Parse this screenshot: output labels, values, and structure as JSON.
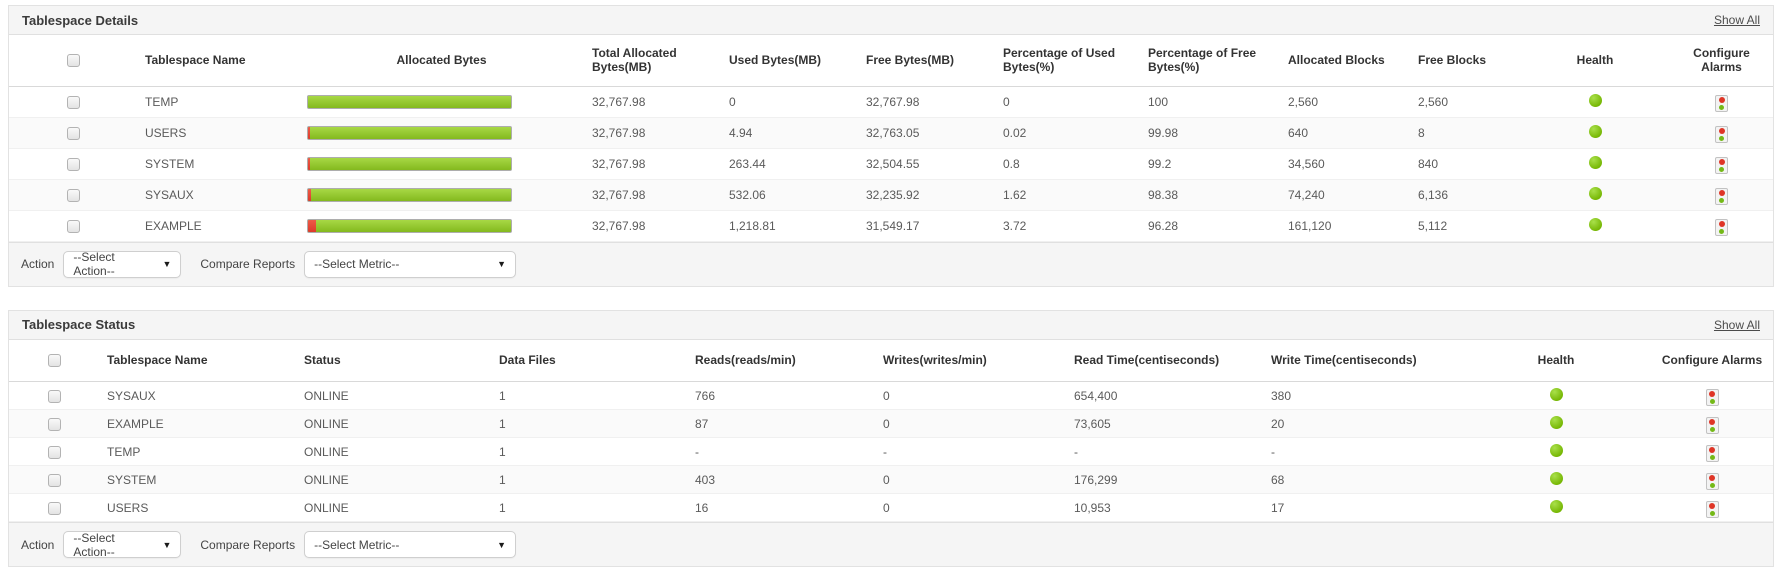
{
  "details_panel": {
    "title": "Tablespace Details",
    "show_all": "Show All",
    "columns": {
      "name": "Tablespace Name",
      "allocated_bytes": "Allocated Bytes",
      "total_allocated": "Total Allocated Bytes(MB)",
      "used": "Used Bytes(MB)",
      "free": "Free Bytes(MB)",
      "pct_used": "Percentage of Used Bytes(%)",
      "pct_free": "Percentage of Free Bytes(%)",
      "allocated_blocks": "Allocated Blocks",
      "free_blocks": "Free Blocks",
      "health": "Health",
      "configure_alarms": "Configure Alarms"
    },
    "rows": [
      {
        "name": "TEMP",
        "used_pct_num": 0,
        "total": "32,767.98",
        "used": "0",
        "free": "32,767.98",
        "pct_used": "0",
        "pct_free": "100",
        "alloc_blocks": "2,560",
        "free_blocks": "2,560",
        "health": "green"
      },
      {
        "name": "USERS",
        "used_pct_num": 0.02,
        "total": "32,767.98",
        "used": "4.94",
        "free": "32,763.05",
        "pct_used": "0.02",
        "pct_free": "99.98",
        "alloc_blocks": "640",
        "free_blocks": "8",
        "health": "green"
      },
      {
        "name": "SYSTEM",
        "used_pct_num": 0.8,
        "total": "32,767.98",
        "used": "263.44",
        "free": "32,504.55",
        "pct_used": "0.8",
        "pct_free": "99.2",
        "alloc_blocks": "34,560",
        "free_blocks": "840",
        "health": "green"
      },
      {
        "name": "SYSAUX",
        "used_pct_num": 1.62,
        "total": "32,767.98",
        "used": "532.06",
        "free": "32,235.92",
        "pct_used": "1.62",
        "pct_free": "98.38",
        "alloc_blocks": "74,240",
        "free_blocks": "6,136",
        "health": "green"
      },
      {
        "name": "EXAMPLE",
        "used_pct_num": 3.72,
        "total": "32,767.98",
        "used": "1,218.81",
        "free": "31,549.17",
        "pct_used": "3.72",
        "pct_free": "96.28",
        "alloc_blocks": "161,120",
        "free_blocks": "5,112",
        "health": "green"
      }
    ],
    "action_label": "Action",
    "action_value": "--Select Action--",
    "compare_label": "Compare Reports",
    "compare_value": "--Select Metric--"
  },
  "status_panel": {
    "title": "Tablespace Status",
    "show_all": "Show All",
    "columns": {
      "name": "Tablespace Name",
      "status": "Status",
      "data_files": "Data Files",
      "reads": "Reads(reads/min)",
      "writes": "Writes(writes/min)",
      "read_time": "Read Time(centiseconds)",
      "write_time": "Write Time(centiseconds)",
      "health": "Health",
      "configure_alarms": "Configure Alarms"
    },
    "rows": [
      {
        "name": "SYSAUX",
        "status": "ONLINE",
        "data_files": "1",
        "reads": "766",
        "writes": "0",
        "read_time": "654,400",
        "write_time": "380",
        "health": "green"
      },
      {
        "name": "EXAMPLE",
        "status": "ONLINE",
        "data_files": "1",
        "reads": "87",
        "writes": "0",
        "read_time": "73,605",
        "write_time": "20",
        "health": "green"
      },
      {
        "name": "TEMP",
        "status": "ONLINE",
        "data_files": "1",
        "reads": "-",
        "writes": "-",
        "read_time": "-",
        "write_time": "-",
        "health": "green"
      },
      {
        "name": "SYSTEM",
        "status": "ONLINE",
        "data_files": "1",
        "reads": "403",
        "writes": "0",
        "read_time": "176,299",
        "write_time": "68",
        "health": "green"
      },
      {
        "name": "USERS",
        "status": "ONLINE",
        "data_files": "1",
        "reads": "16",
        "writes": "0",
        "read_time": "10,953",
        "write_time": "17",
        "health": "green"
      }
    ],
    "action_label": "Action",
    "action_value": "--Select Action--",
    "compare_label": "Compare Reports",
    "compare_value": "--Select Metric--"
  }
}
